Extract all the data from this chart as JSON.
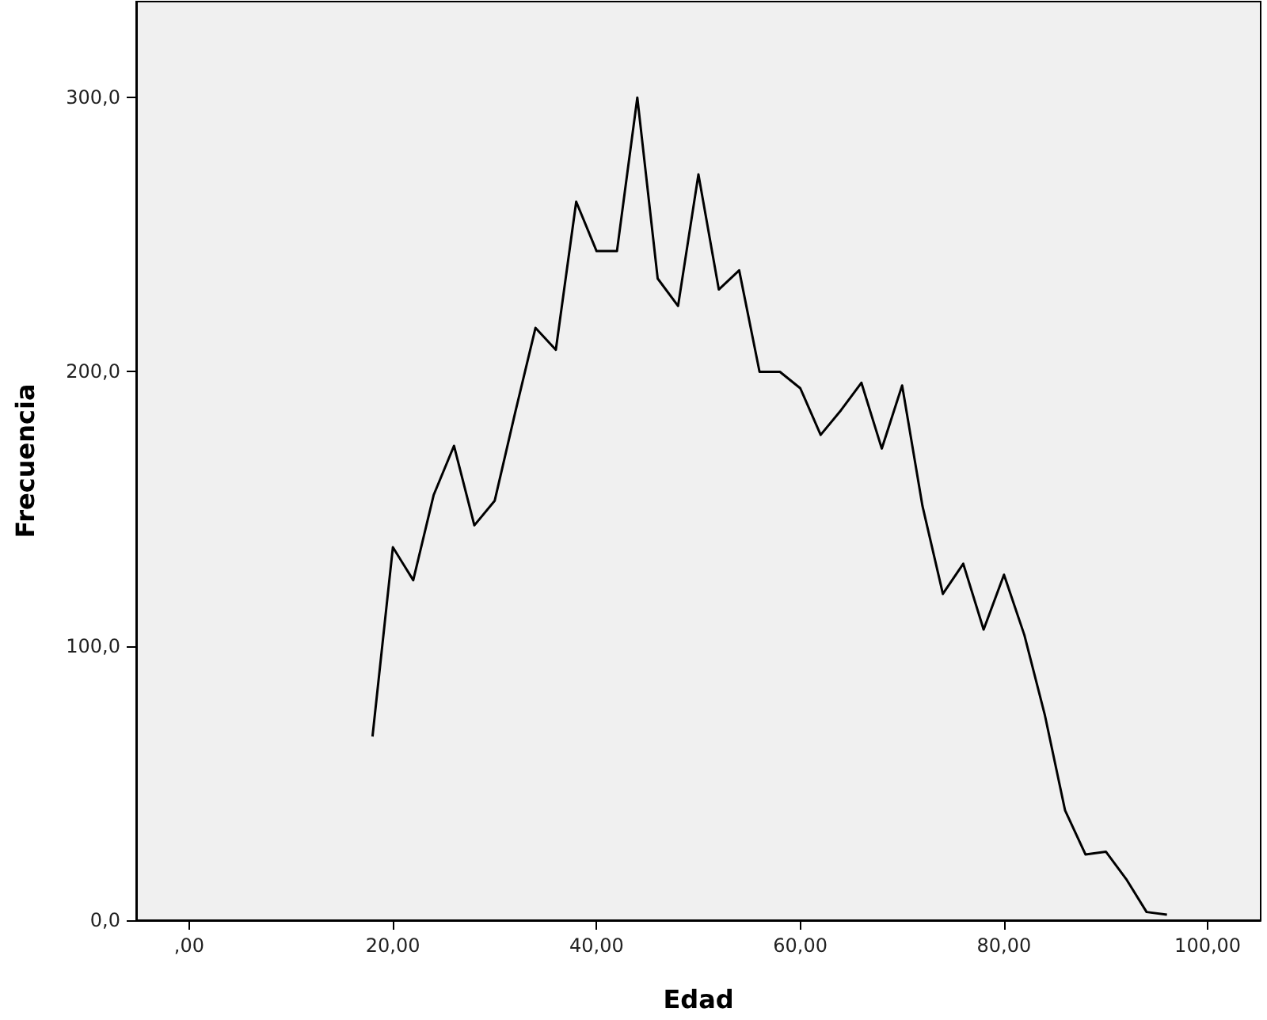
{
  "chart_data": {
    "type": "line",
    "xlabel": "Edad",
    "ylabel": "Frecuencia",
    "x": [
      18,
      20,
      22,
      24,
      26,
      28,
      30,
      32,
      34,
      36,
      38,
      40,
      42,
      44,
      46,
      48,
      50,
      52,
      54,
      56,
      58,
      60,
      62,
      64,
      66,
      68,
      70,
      72,
      74,
      76,
      78,
      80,
      82,
      84,
      86,
      88,
      90,
      92,
      94,
      96
    ],
    "series": [
      {
        "color": "#000000",
        "values": [
          67,
          136,
          124,
          155,
          173,
          144,
          153,
          185,
          216,
          208,
          262,
          244,
          244,
          300,
          234,
          224,
          272,
          230,
          237,
          200,
          200,
          194,
          177,
          186,
          196,
          172,
          195,
          151,
          119,
          130,
          106,
          126,
          104,
          75,
          40,
          24,
          25,
          15,
          3,
          2
        ]
      }
    ],
    "xlim": [
      -5.2,
      105.2
    ],
    "xticks": [
      {
        "value": 0,
        "label": ",00"
      },
      {
        "value": 20,
        "label": "20,00"
      },
      {
        "value": 40,
        "label": "40,00"
      },
      {
        "value": 60,
        "label": "60,00"
      },
      {
        "value": 80,
        "label": "80,00"
      },
      {
        "value": 100,
        "label": "100,00"
      }
    ],
    "ylim": [
      0,
      335
    ],
    "yticks": [
      {
        "value": 0,
        "label": "0,0"
      },
      {
        "value": 100,
        "label": "100,0"
      },
      {
        "value": 200,
        "label": "200,0"
      },
      {
        "value": 300,
        "label": "300,0"
      }
    ],
    "grid": false,
    "marker": "none",
    "line_style": "solid"
  }
}
